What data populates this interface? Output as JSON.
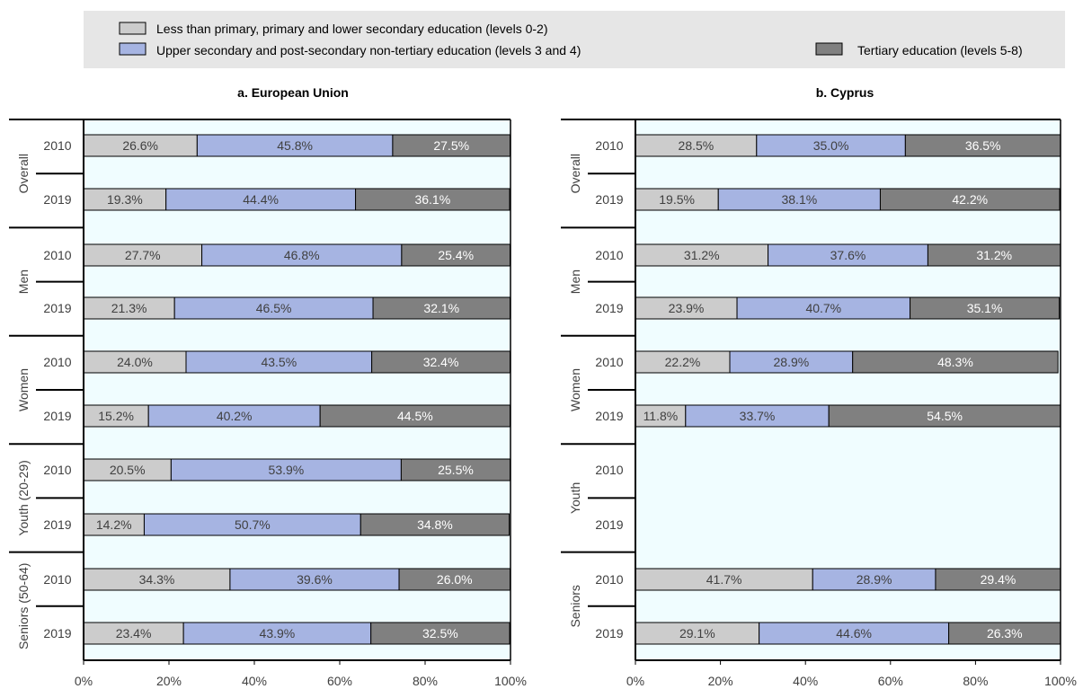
{
  "legend": {
    "items": [
      {
        "label": "Less than primary, primary and lower secondary education (levels 0-2)",
        "color": "#cccccc"
      },
      {
        "label": "Upper secondary and post-secondary non-tertiary education (levels 3 and 4)",
        "color": "#a6b4e2"
      },
      {
        "label": "Tertiary education (levels 5-8)",
        "color": "#808080"
      }
    ],
    "placement": "top"
  },
  "colors": {
    "plot_background": "#f0fdff",
    "legend_background": "#e6e6e6",
    "low": "#cccccc",
    "mid": "#a6b4e2",
    "high": "#808080"
  },
  "chart_data": [
    {
      "type": "bar",
      "orientation": "horizontal",
      "stacked": true,
      "title": "a. European Union",
      "xlim": [
        0,
        100
      ],
      "x_ticks": [
        "0%",
        "20%",
        "40%",
        "60%",
        "80%",
        "100%"
      ],
      "groups": [
        {
          "label": "Overall",
          "rows": [
            {
              "year": "2010",
              "values": [
                26.6,
                45.8,
                27.5
              ],
              "labels": [
                "26.6%",
                "45.8%",
                "27.5%"
              ]
            },
            {
              "year": "2019",
              "values": [
                19.3,
                44.4,
                36.1
              ],
              "labels": [
                "19.3%",
                "44.4%",
                "36.1%"
              ]
            }
          ]
        },
        {
          "label": "Men",
          "rows": [
            {
              "year": "2010",
              "values": [
                27.7,
                46.8,
                25.4
              ],
              "labels": [
                "27.7%",
                "46.8%",
                "25.4%"
              ]
            },
            {
              "year": "2019",
              "values": [
                21.3,
                46.5,
                32.1
              ],
              "labels": [
                "21.3%",
                "46.5%",
                "32.1%"
              ]
            }
          ]
        },
        {
          "label": "Women",
          "rows": [
            {
              "year": "2010",
              "values": [
                24.0,
                43.5,
                32.4
              ],
              "labels": [
                "24.0%",
                "43.5%",
                "32.4%"
              ]
            },
            {
              "year": "2019",
              "values": [
                15.2,
                40.2,
                44.5
              ],
              "labels": [
                "15.2%",
                "40.2%",
                "44.5%"
              ]
            }
          ]
        },
        {
          "label": "Youth (20-29)",
          "rows": [
            {
              "year": "2010",
              "values": [
                20.5,
                53.9,
                25.5
              ],
              "labels": [
                "20.5%",
                "53.9%",
                "25.5%"
              ]
            },
            {
              "year": "2019",
              "values": [
                14.2,
                50.7,
                34.8
              ],
              "labels": [
                "14.2%",
                "50.7%",
                "34.8%"
              ]
            }
          ]
        },
        {
          "label": "Seniors (50-64)",
          "rows": [
            {
              "year": "2010",
              "values": [
                34.3,
                39.6,
                26.0
              ],
              "labels": [
                "34.3%",
                "39.6%",
                "26.0%"
              ]
            },
            {
              "year": "2019",
              "values": [
                23.4,
                43.9,
                32.5
              ],
              "labels": [
                "23.4%",
                "43.9%",
                "32.5%"
              ]
            }
          ]
        }
      ]
    },
    {
      "type": "bar",
      "orientation": "horizontal",
      "stacked": true,
      "title": "b. Cyprus",
      "xlim": [
        0,
        100
      ],
      "x_ticks": [
        "0%",
        "20%",
        "40%",
        "60%",
        "80%",
        "100%"
      ],
      "groups": [
        {
          "label": "Overall",
          "rows": [
            {
              "year": "2010",
              "values": [
                28.5,
                35.0,
                36.5
              ],
              "labels": [
                "28.5%",
                "35.0%",
                "36.5%"
              ]
            },
            {
              "year": "2019",
              "values": [
                19.5,
                38.1,
                42.2
              ],
              "labels": [
                "19.5%",
                "38.1%",
                "42.2%"
              ]
            }
          ]
        },
        {
          "label": "Men",
          "rows": [
            {
              "year": "2010",
              "values": [
                31.2,
                37.6,
                31.2
              ],
              "labels": [
                "31.2%",
                "37.6%",
                "31.2%"
              ]
            },
            {
              "year": "2019",
              "values": [
                23.9,
                40.7,
                35.1
              ],
              "labels": [
                "23.9%",
                "40.7%",
                "35.1%"
              ]
            }
          ]
        },
        {
          "label": "Women",
          "rows": [
            {
              "year": "2010",
              "values": [
                22.2,
                28.9,
                48.3
              ],
              "labels": [
                "22.2%",
                "28.9%",
                "48.3%"
              ]
            },
            {
              "year": "2019",
              "values": [
                11.8,
                33.7,
                54.5
              ],
              "labels": [
                "11.8%",
                "33.7%",
                "54.5%"
              ]
            }
          ]
        },
        {
          "label": "Youth",
          "rows": [
            {
              "year": "2010",
              "values": [],
              "labels": []
            },
            {
              "year": "2019",
              "values": [],
              "labels": []
            }
          ]
        },
        {
          "label": "Seniors",
          "rows": [
            {
              "year": "2010",
              "values": [
                41.7,
                28.9,
                29.4
              ],
              "labels": [
                "41.7%",
                "28.9%",
                "29.4%"
              ]
            },
            {
              "year": "2019",
              "values": [
                29.1,
                44.6,
                26.3
              ],
              "labels": [
                "29.1%",
                "44.6%",
                "26.3%"
              ]
            }
          ]
        }
      ]
    }
  ]
}
